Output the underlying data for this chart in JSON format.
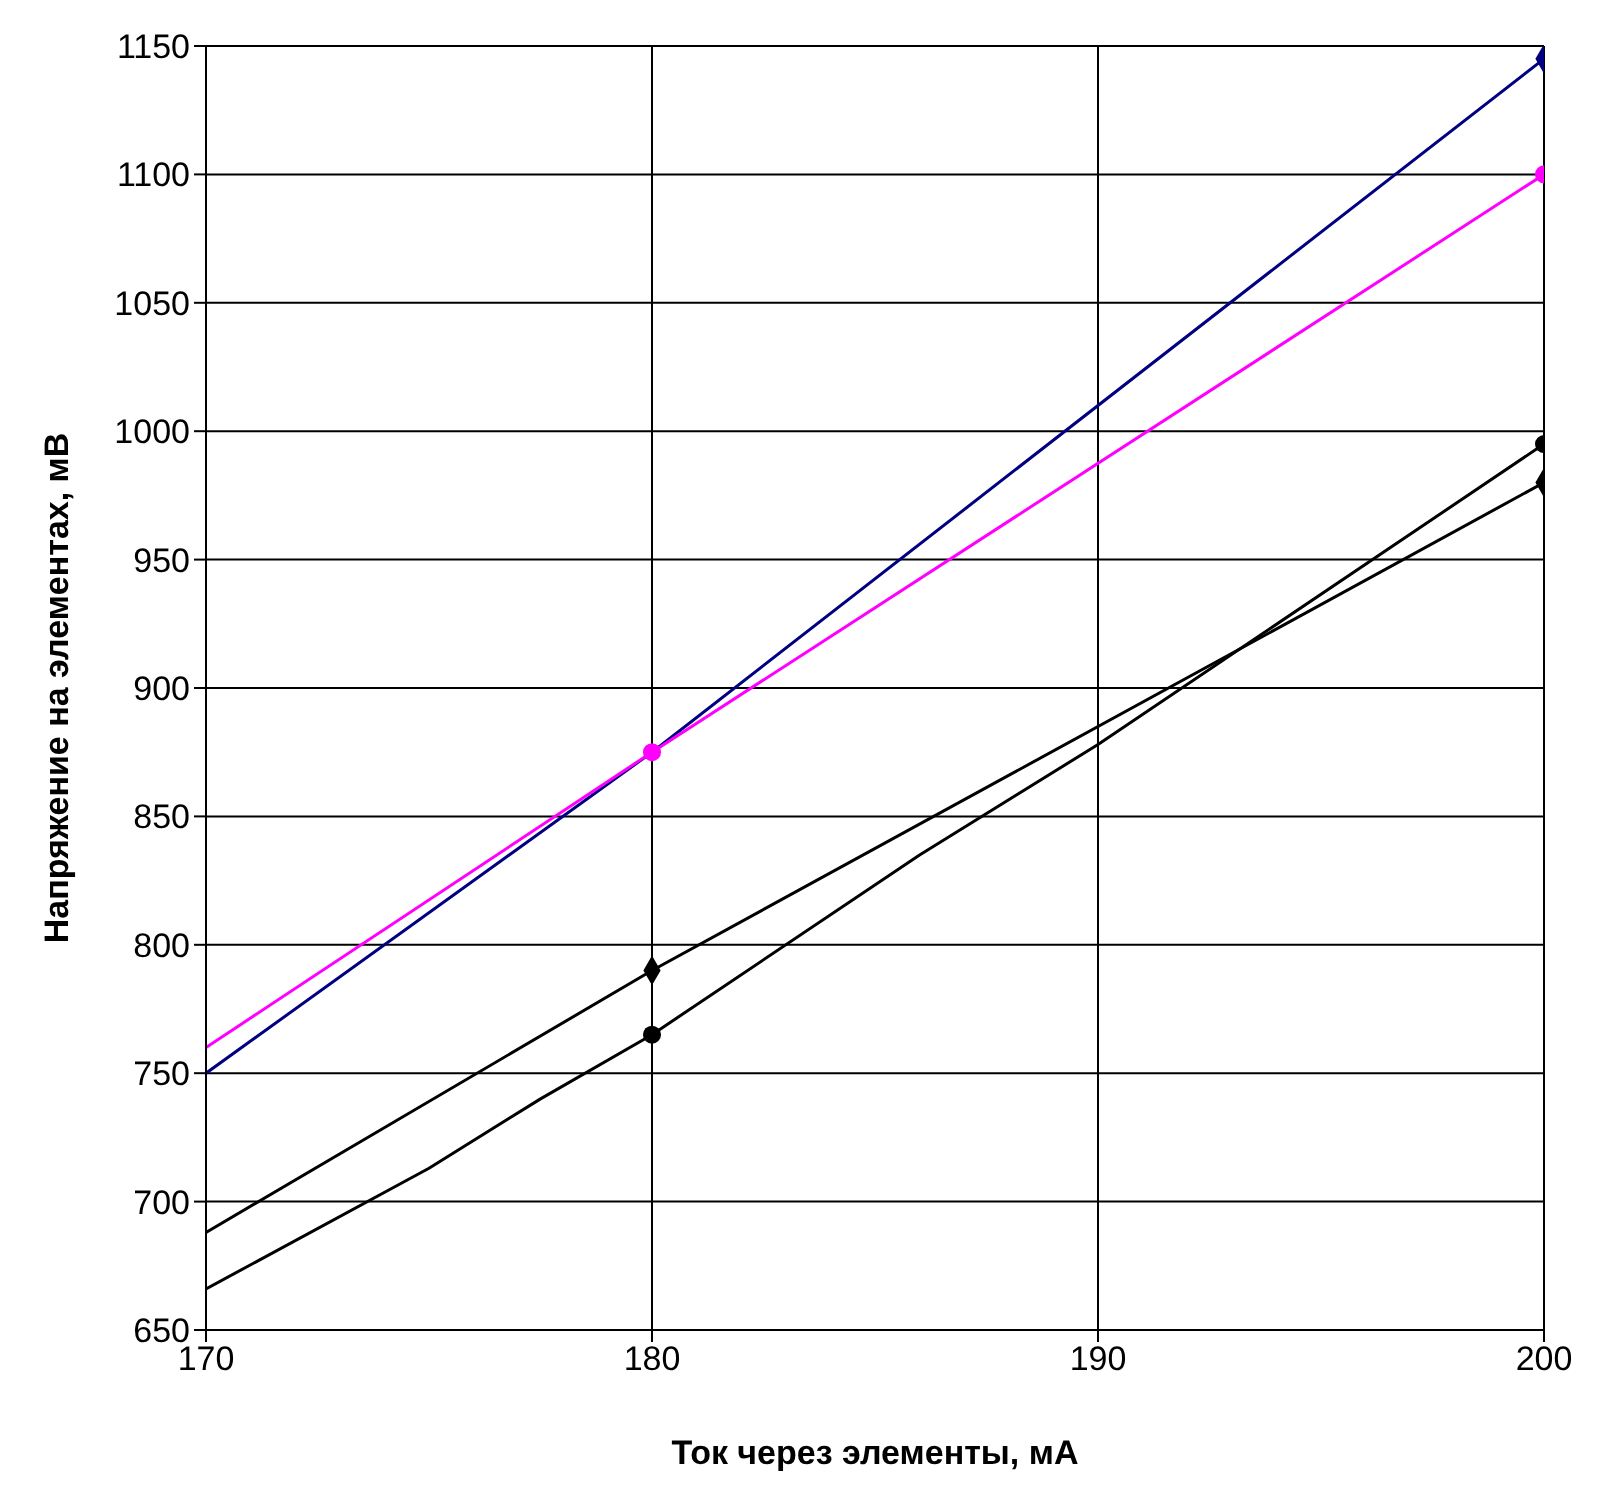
{
  "chart_data": {
    "type": "line",
    "xlabel": "Ток через элементы, мА",
    "ylabel": "Напряжение на элементах, мВ",
    "xlim": [
      170,
      200
    ],
    "xticks": [
      170,
      180,
      190,
      200
    ],
    "ylim": [
      650,
      1150
    ],
    "yticks": [
      650,
      700,
      750,
      800,
      850,
      900,
      950,
      1000,
      1050,
      1100,
      1150
    ],
    "grid": true,
    "series": [
      {
        "color": "#000080",
        "marker": "none",
        "x": [
          170,
          180,
          200
        ],
        "values": [
          750,
          875,
          1145
        ]
      },
      {
        "type": "scatter",
        "color": "#000080",
        "marker": "diamond",
        "x": [
          200
        ],
        "values": [
          1145
        ]
      },
      {
        "color": "#ff00ff",
        "marker": "none",
        "x": [
          170,
          180,
          200
        ],
        "values": [
          760,
          875,
          1100
        ]
      },
      {
        "type": "scatter",
        "color": "#ff00ff",
        "marker": "circle",
        "x": [
          180,
          200
        ],
        "values": [
          875,
          1100
        ]
      },
      {
        "color": "#000000",
        "marker": "none",
        "x": [
          170,
          180,
          200
        ],
        "values": [
          688,
          790,
          980
        ]
      },
      {
        "type": "scatter",
        "color": "#000000",
        "marker": "diamond",
        "x": [
          180,
          200
        ],
        "values": [
          790,
          980
        ]
      },
      {
        "color": "#000000",
        "marker": "none",
        "x": [
          170,
          175,
          177.5,
          180,
          186,
          190,
          200
        ],
        "values": [
          666,
          713,
          740,
          765,
          835,
          878,
          995
        ]
      },
      {
        "type": "scatter",
        "color": "#000000",
        "marker": "circle",
        "x": [
          180,
          200
        ],
        "values": [
          765,
          995
        ]
      }
    ]
  }
}
